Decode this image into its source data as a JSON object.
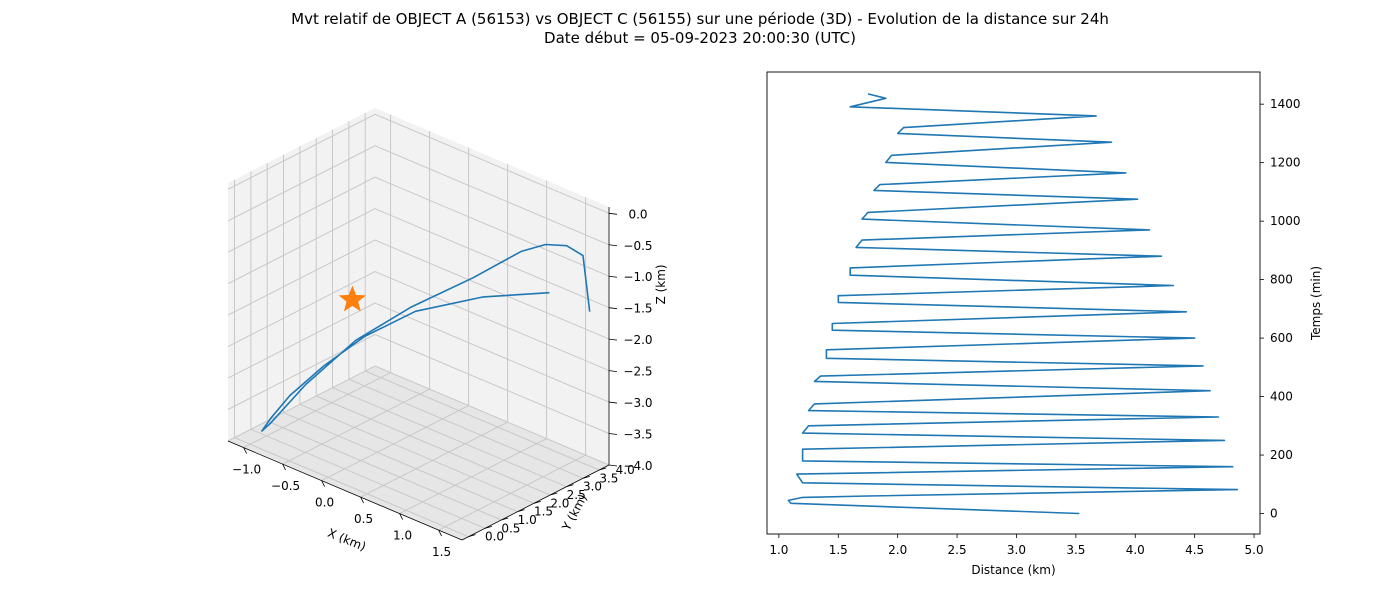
{
  "figure": {
    "title_line1": "Mvt relatif de OBJECT A (56153) vs OBJECT C (56155) sur une période (3D) - Evolution de la distance sur 24h",
    "title_line2": "Date début = 05-09-2023 20:00:30 (UTC)"
  },
  "chart_data": [
    {
      "type": "line",
      "projection": "3d",
      "xlabel": "X (km)",
      "ylabel": "Y (km)",
      "zlabel": "Z (km)",
      "xlim": [
        -1.2,
        1.8
      ],
      "ylim": [
        -0.2,
        4.3
      ],
      "zlim": [
        -4.0,
        0.1
      ],
      "xticks": [
        "−1.0",
        "−0.5",
        "0.0",
        "0.5",
        "1.0",
        "1.5"
      ],
      "yticks": [
        "0.0",
        "0.5",
        "1.0",
        "1.5",
        "2.0",
        "2.5",
        "3.0",
        "3.5",
        "4.0"
      ],
      "zticks": [
        "0.0",
        "−0.5",
        "−1.0",
        "−1.5",
        "−2.0",
        "−2.5",
        "−3.0",
        "−3.5",
        "−4.0"
      ],
      "grid": true,
      "line_color": "#1f77b4",
      "marker_color": "#ff7f0e",
      "marker": "star",
      "series": [
        {
          "x": [
            1.72,
            1.55,
            1.3,
            1.05,
            0.8,
            0.35,
            -0.2,
            -0.65,
            -1.0,
            -1.15,
            -1.1,
            -0.95,
            -0.7,
            -0.35,
            0.05,
            0.45,
            0.9,
            1.35
          ],
          "y": [
            3.9,
            4.1,
            4.2,
            4.15,
            4.0,
            3.6,
            3.0,
            2.4,
            1.7,
            1.0,
            0.6,
            0.5,
            0.5,
            0.7,
            1.0,
            1.6,
            2.6,
            3.55
          ],
          "z": [
            -1.5,
            -0.75,
            -0.75,
            -0.85,
            -1.05,
            -1.6,
            -2.2,
            -2.8,
            -3.5,
            -4.0,
            -4.0,
            -3.7,
            -3.2,
            -2.6,
            -2.0,
            -1.55,
            -1.35,
            -1.3
          ]
        }
      ],
      "marker_point": {
        "x": -0.15,
        "y": 1.1,
        "z": -1.55
      }
    },
    {
      "type": "line",
      "xlabel": "Distance (km)",
      "ylabel": "Temps (min)",
      "xlim": [
        0.9,
        5.05
      ],
      "ylim": [
        -70,
        1510
      ],
      "xticks": [
        1.0,
        1.5,
        2.0,
        2.5,
        3.0,
        3.5,
        4.0,
        4.5,
        5.0
      ],
      "yticks": [
        0,
        200,
        400,
        600,
        800,
        1000,
        1200,
        1400
      ],
      "ytick_side": "right",
      "line_color": "#1f77b4",
      "series": [
        {
          "time_min": [
            0,
            35,
            45,
            55,
            60,
            82,
            105,
            135,
            160,
            180,
            220,
            250,
            275,
            300,
            330,
            352,
            375,
            420,
            452,
            470,
            505,
            531,
            560,
            600,
            627,
            650,
            690,
            722,
            745,
            780,
            815,
            840,
            880,
            910,
            935,
            970,
            1007,
            1030,
            1075,
            1105,
            1125,
            1165,
            1201,
            1225,
            1270,
            1300,
            1320,
            1360,
            1391,
            1420,
            1435
          ],
          "distance_km": [
            3.53,
            1.1,
            1.08,
            1.2,
            1.75,
            4.86,
            1.2,
            1.15,
            4.82,
            1.2,
            1.2,
            4.75,
            1.2,
            1.25,
            4.7,
            1.25,
            1.3,
            4.63,
            1.3,
            1.35,
            4.57,
            1.4,
            1.4,
            4.5,
            1.45,
            1.45,
            4.43,
            1.5,
            1.5,
            4.32,
            1.6,
            1.6,
            4.22,
            1.65,
            1.7,
            4.12,
            1.7,
            1.75,
            4.02,
            1.8,
            1.85,
            3.92,
            1.9,
            1.95,
            3.8,
            2.0,
            2.05,
            3.67,
            1.6,
            1.9,
            1.75
          ]
        }
      ]
    }
  ]
}
